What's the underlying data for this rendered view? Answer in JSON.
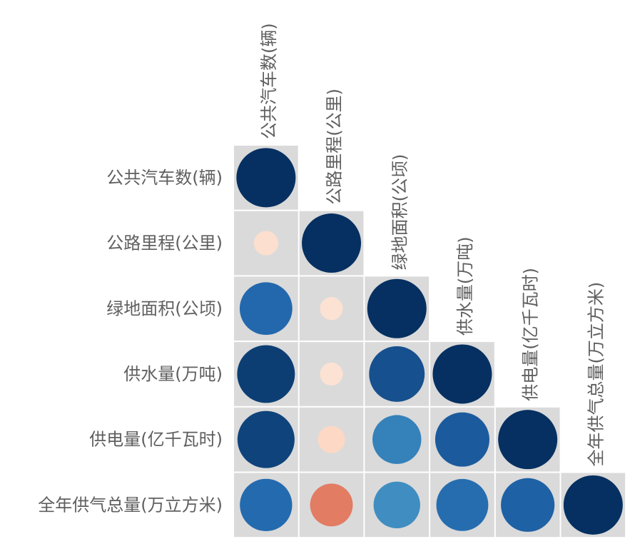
{
  "chart_data": {
    "type": "heatmap",
    "shape": "circle",
    "triangle": "lower",
    "labels": [
      "公共汽车数(辆)",
      "公路里程(公里)",
      "绿地面积(公顷)",
      "供水量(万吨)",
      "供电量(亿千瓦时)",
      "全年供气总量(万立方米)"
    ],
    "matrix": [
      [
        1
      ],
      [
        -0.17,
        1
      ],
      [
        0.79,
        -0.15,
        1
      ],
      [
        0.95,
        -0.15,
        0.88,
        1
      ],
      [
        0.93,
        -0.21,
        0.68,
        0.84,
        1
      ],
      [
        0.78,
        -0.52,
        0.62,
        0.77,
        0.82,
        1
      ]
    ],
    "value_range": [
      -1,
      1
    ],
    "colorscale": [
      "#67001f",
      "#b2182b",
      "#d6604d",
      "#f4a582",
      "#fddbc7",
      "#f7f7f7",
      "#d1e5f0",
      "#92c5de",
      "#4393c3",
      "#2166ac",
      "#053061"
    ],
    "cell_background": "#dadada",
    "label_color": "#5f5f5f",
    "grid": false,
    "legend": "none"
  }
}
